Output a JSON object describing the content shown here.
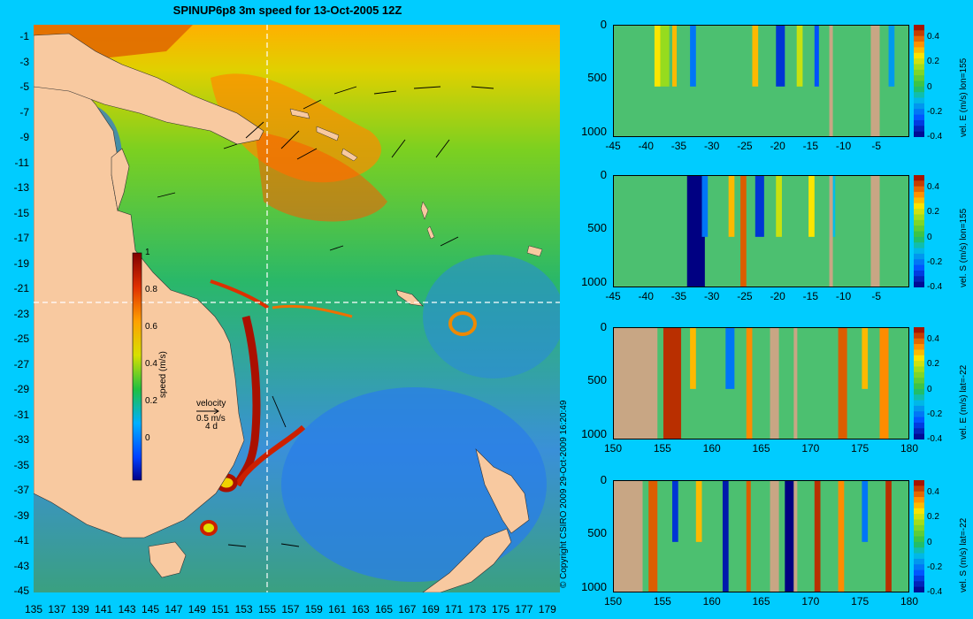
{
  "title": "SPINUP6p8 3m speed for 13-Oct-2005 12Z",
  "copyright": "© Copyright CSIRO 2009   29-Oct-2009 16:20:49",
  "colors": {
    "background": "#00ccff",
    "land": "#f8c9a0",
    "section_land": "#c8a684",
    "ocean_low": "#1e78e0",
    "ocean_mid": "#22c41c",
    "ocean_high": "#ff9a00",
    "current_core": "#aa1000"
  },
  "map": {
    "lat_ticks": [
      "-1",
      "-3",
      "-5",
      "-7",
      "-9",
      "-11",
      "-13",
      "-15",
      "-17",
      "-19",
      "-21",
      "-23",
      "-25",
      "-27",
      "-29",
      "-31",
      "-33",
      "-35",
      "-37",
      "-39",
      "-41",
      "-43",
      "-45"
    ],
    "lon_ticks": [
      "135",
      "137",
      "139",
      "141",
      "143",
      "145",
      "147",
      "149",
      "151",
      "153",
      "155",
      "157",
      "159",
      "161",
      "163",
      "165",
      "167",
      "169",
      "171",
      "173",
      "175",
      "177",
      "179"
    ],
    "colorbar": {
      "label": "speed (m/s)",
      "ticks": [
        "1",
        "0.8",
        "0.6",
        "0.4",
        "0.2",
        "0"
      ]
    },
    "velocity_key": {
      "title": "velocity",
      "scale": "0.5 m/s",
      "duration": "4 d"
    },
    "section_lines": {
      "lon": 155,
      "lat": -22
    }
  },
  "sections": [
    {
      "id": "vel-e-lon155",
      "colorbar_label": "vel. E (m/s) lon=155",
      "x_ticks": [
        "-45",
        "-40",
        "-35",
        "-30",
        "-25",
        "-20",
        "-15",
        "-10",
        "-5"
      ],
      "depth_ticks": [
        "0",
        "500",
        "1000"
      ],
      "colorbar_ticks": [
        "0.4",
        "0.2",
        "0",
        "-0.2",
        "-0.4"
      ]
    },
    {
      "id": "vel-s-lon155",
      "colorbar_label": "vel. S (m/s) lon=155",
      "x_ticks": [
        "-45",
        "-40",
        "-35",
        "-30",
        "-25",
        "-20",
        "-15",
        "-10",
        "-5"
      ],
      "depth_ticks": [
        "0",
        "500",
        "1000"
      ],
      "colorbar_ticks": [
        "0.4",
        "0.2",
        "0",
        "-0.2",
        "-0.4"
      ]
    },
    {
      "id": "vel-e-lat22",
      "colorbar_label": "vel. E (m/s) lat=-22",
      "x_ticks": [
        "150",
        "155",
        "160",
        "165",
        "170",
        "175",
        "180"
      ],
      "depth_ticks": [
        "0",
        "500",
        "1000"
      ],
      "colorbar_ticks": [
        "0.4",
        "0.2",
        "0",
        "-0.2",
        "-0.4"
      ]
    },
    {
      "id": "vel-s-lat22",
      "colorbar_label": "vel. S (m/s) lat=-22",
      "x_ticks": [
        "150",
        "155",
        "160",
        "165",
        "170",
        "175",
        "180"
      ],
      "depth_ticks": [
        "0",
        "500",
        "1000"
      ],
      "colorbar_ticks": [
        "0.4",
        "0.2",
        "0",
        "-0.2",
        "-0.4"
      ]
    }
  ],
  "chart_data": [
    {
      "type": "heatmap",
      "title": "SPINUP6p8 3m speed for 13-Oct-2005 12Z",
      "xlabel": "",
      "ylabel": "",
      "xlim": [
        135,
        180
      ],
      "ylim": [
        -45,
        0
      ],
      "colorbar": {
        "label": "speed (m/s)",
        "range": [
          -0.1,
          1
        ]
      }
    },
    {
      "type": "heatmap",
      "xlim": [
        -45,
        0
      ],
      "ylim": [
        1050,
        0
      ],
      "colorbar": {
        "label": "vel. E (m/s) lon=155",
        "range": [
          -0.4,
          0.5
        ]
      }
    },
    {
      "type": "heatmap",
      "xlim": [
        -45,
        0
      ],
      "ylim": [
        1050,
        0
      ],
      "colorbar": {
        "label": "vel. S (m/s) lon=155",
        "range": [
          -0.4,
          0.5
        ]
      }
    },
    {
      "type": "heatmap",
      "xlim": [
        150,
        180
      ],
      "ylim": [
        1050,
        0
      ],
      "colorbar": {
        "label": "vel. E (m/s) lat=-22",
        "range": [
          -0.4,
          0.5
        ]
      }
    },
    {
      "type": "heatmap",
      "xlim": [
        150,
        180
      ],
      "ylim": [
        1050,
        0
      ],
      "colorbar": {
        "label": "vel. S (m/s) lat=-22",
        "range": [
          -0.4,
          0.5
        ]
      }
    }
  ]
}
